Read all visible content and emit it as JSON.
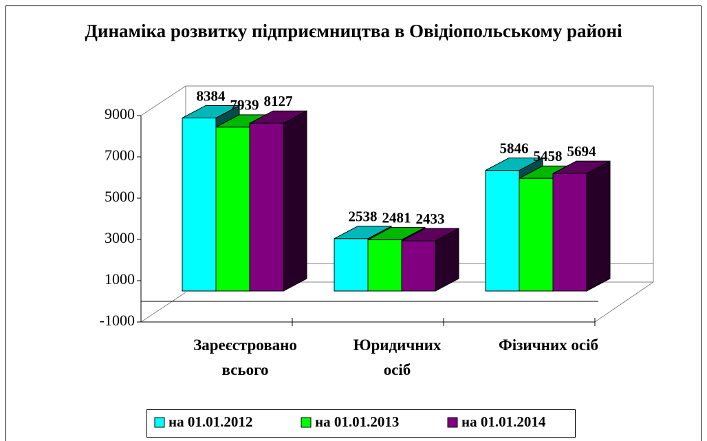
{
  "chart_data": {
    "type": "bar3d",
    "title": "Динаміка розвитку підприємництва в Овідіопольському районі",
    "categories": [
      "Зареєстровано всього",
      "Юридичних осіб",
      "Фізичних осіб"
    ],
    "series": [
      {
        "name": "на 01.01.2012",
        "color": "#00ffff",
        "values": [
          8384,
          2538,
          5846
        ]
      },
      {
        "name": "на 01.01.2013",
        "color": "#00ff00",
        "values": [
          7939,
          2481,
          5458
        ]
      },
      {
        "name": "на 01.01.2014",
        "color": "#800080",
        "values": [
          8127,
          2433,
          5694
        ]
      }
    ],
    "ylim": [
      -1000,
      9000
    ],
    "yticks": [
      -1000,
      1000,
      3000,
      5000,
      7000,
      9000
    ],
    "legend": "bottom"
  }
}
